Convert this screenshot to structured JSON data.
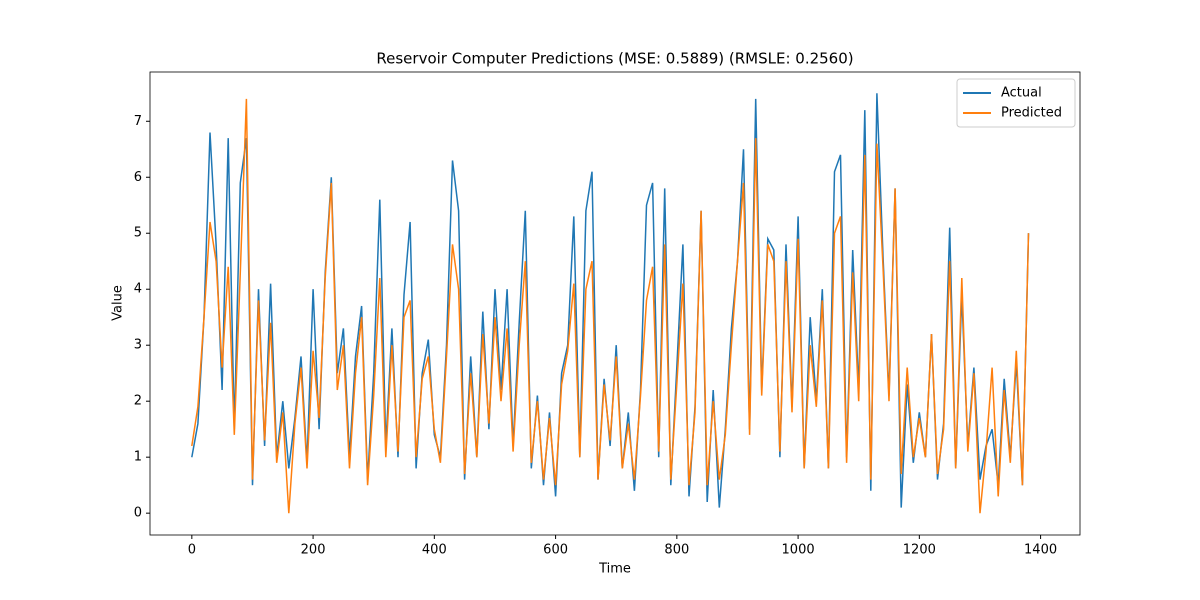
{
  "chart_data": {
    "type": "line",
    "title": "Reservoir Computer Predictions (MSE: 0.5889) (RMSLE: 0.2560)",
    "xlabel": "Time",
    "ylabel": "Value",
    "x": [
      0,
      10,
      20,
      30,
      40,
      50,
      60,
      70,
      80,
      90,
      100,
      110,
      120,
      130,
      140,
      150,
      160,
      170,
      180,
      190,
      200,
      210,
      220,
      230,
      240,
      250,
      260,
      270,
      280,
      290,
      300,
      310,
      320,
      330,
      340,
      350,
      360,
      370,
      380,
      390,
      400,
      410,
      420,
      430,
      440,
      450,
      460,
      470,
      480,
      490,
      500,
      510,
      520,
      530,
      540,
      550,
      560,
      570,
      580,
      590,
      600,
      610,
      620,
      630,
      640,
      650,
      660,
      670,
      680,
      690,
      700,
      710,
      720,
      730,
      740,
      750,
      760,
      770,
      780,
      790,
      800,
      810,
      820,
      830,
      840,
      850,
      860,
      870,
      880,
      890,
      900,
      910,
      920,
      930,
      940,
      950,
      960,
      970,
      980,
      990,
      1000,
      1010,
      1020,
      1030,
      1040,
      1050,
      1060,
      1070,
      1080,
      1090,
      1100,
      1110,
      1120,
      1130,
      1140,
      1150,
      1160,
      1170,
      1180,
      1190,
      1200,
      1210,
      1220,
      1230,
      1240,
      1250,
      1260,
      1270,
      1280,
      1290,
      1300,
      1310,
      1320,
      1330,
      1340,
      1350,
      1360,
      1370,
      1380
    ],
    "series": [
      {
        "name": "Actual",
        "color": "#1f77b4",
        "values": [
          1.0,
          1.6,
          3.5,
          6.8,
          4.8,
          2.2,
          6.7,
          1.5,
          5.9,
          6.7,
          0.5,
          4.0,
          1.2,
          4.1,
          1.0,
          2.0,
          0.8,
          1.7,
          2.8,
          0.9,
          4.0,
          1.5,
          4.3,
          6.0,
          2.5,
          3.3,
          1.0,
          2.8,
          3.7,
          0.6,
          2.5,
          5.6,
          1.2,
          3.3,
          1.0,
          3.9,
          5.2,
          0.8,
          2.5,
          3.1,
          1.4,
          1.0,
          3.0,
          6.3,
          5.4,
          0.6,
          2.8,
          1.0,
          3.6,
          1.5,
          4.0,
          2.2,
          4.0,
          1.2,
          3.4,
          5.4,
          0.8,
          2.1,
          0.5,
          1.8,
          0.3,
          2.5,
          3.0,
          5.3,
          1.0,
          5.4,
          6.1,
          0.6,
          2.4,
          1.2,
          3.0,
          0.8,
          1.8,
          0.4,
          2.2,
          5.5,
          5.9,
          1.0,
          5.8,
          0.5,
          2.6,
          4.8,
          0.3,
          1.9,
          5.4,
          0.2,
          2.2,
          0.1,
          1.5,
          3.3,
          4.5,
          6.5,
          1.5,
          7.4,
          2.2,
          4.9,
          4.7,
          1.0,
          4.8,
          1.9,
          5.3,
          0.8,
          3.5,
          2.0,
          4.0,
          0.8,
          6.1,
          6.4,
          1.0,
          4.7,
          2.2,
          7.2,
          0.4,
          7.5,
          4.6,
          2.1,
          5.8,
          0.1,
          2.3,
          0.9,
          1.8,
          1.0,
          3.2,
          0.6,
          1.6,
          5.1,
          0.8,
          3.9,
          1.2,
          2.6,
          0.6,
          1.2,
          1.5,
          0.5,
          2.4,
          1.0,
          2.7,
          0.5,
          5.0
        ]
      },
      {
        "name": "Predicted",
        "color": "#ff7f0e",
        "values": [
          1.2,
          1.9,
          3.5,
          5.2,
          4.5,
          2.6,
          4.4,
          1.4,
          4.3,
          7.4,
          0.6,
          3.8,
          1.3,
          3.4,
          0.9,
          1.8,
          0.0,
          1.6,
          2.6,
          0.8,
          2.9,
          1.7,
          4.2,
          5.9,
          2.2,
          3.0,
          0.8,
          2.5,
          3.5,
          0.5,
          2.1,
          4.2,
          1.0,
          3.0,
          1.1,
          3.5,
          3.8,
          1.0,
          2.4,
          2.8,
          1.5,
          0.9,
          2.8,
          4.8,
          4.0,
          0.7,
          2.5,
          1.0,
          3.2,
          1.6,
          3.5,
          2.0,
          3.3,
          1.1,
          3.0,
          4.5,
          0.9,
          2.0,
          0.6,
          1.7,
          0.5,
          2.3,
          2.9,
          4.1,
          1.0,
          4.0,
          4.5,
          0.6,
          2.3,
          1.3,
          2.8,
          0.8,
          1.6,
          0.6,
          2.1,
          3.8,
          4.4,
          1.1,
          4.8,
          0.6,
          2.3,
          4.1,
          0.5,
          1.8,
          5.4,
          0.5,
          2.0,
          0.6,
          1.4,
          3.0,
          4.5,
          5.9,
          1.4,
          6.7,
          2.1,
          4.8,
          4.5,
          1.1,
          4.5,
          1.8,
          4.9,
          0.8,
          3.0,
          1.9,
          3.8,
          0.8,
          5.0,
          5.3,
          0.9,
          4.3,
          2.0,
          6.4,
          0.6,
          6.6,
          4.4,
          2.0,
          5.8,
          0.7,
          2.6,
          1.0,
          1.7,
          1.0,
          3.2,
          0.7,
          1.5,
          4.5,
          0.8,
          4.2,
          1.1,
          2.5,
          0.0,
          1.1,
          2.6,
          0.3,
          2.2,
          0.9,
          2.9,
          0.5,
          5.0
        ]
      }
    ],
    "xlim": [
      -69,
      1465
    ],
    "ylim": [
      -0.39,
      7.88
    ],
    "xticks": [
      0,
      200,
      400,
      600,
      800,
      1000,
      1200,
      1400
    ],
    "yticks": [
      0,
      1,
      2,
      3,
      4,
      5,
      6,
      7
    ],
    "legend": "upper right"
  }
}
